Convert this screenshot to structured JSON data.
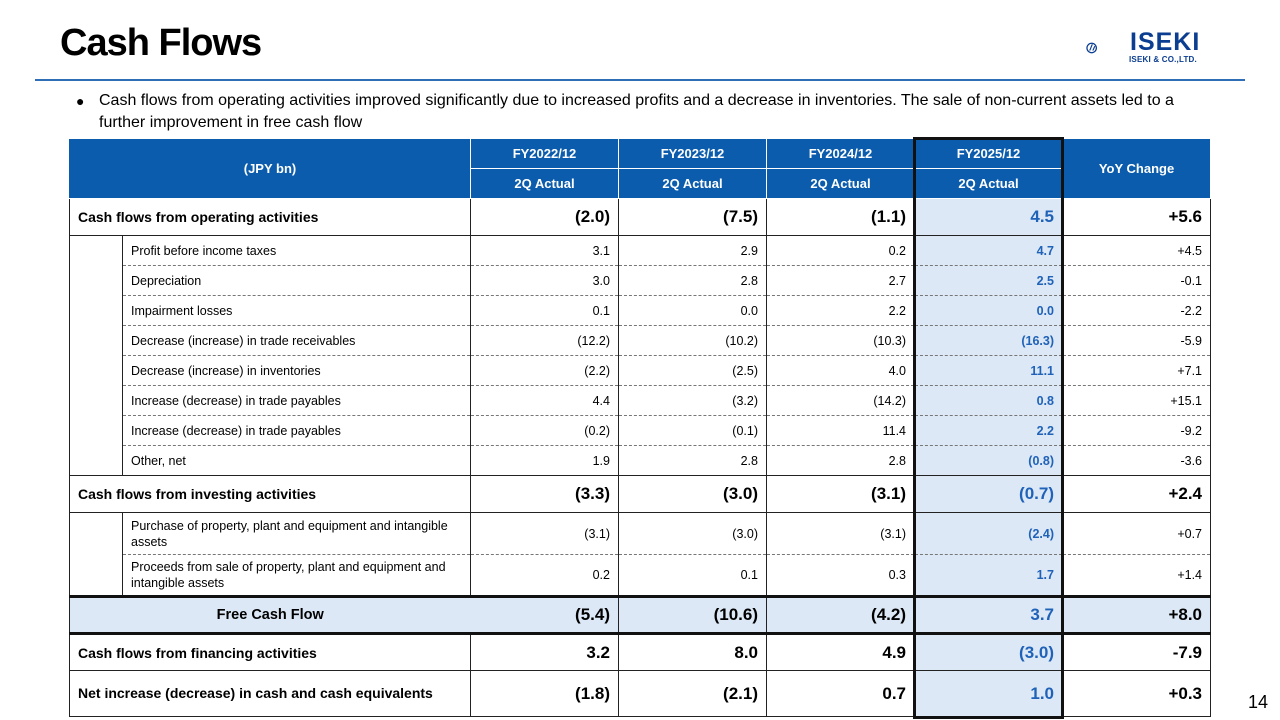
{
  "title": "Cash Flows",
  "logo": {
    "name": "ISEKI",
    "sub": "ISEKI & CO.,LTD."
  },
  "bullet": "Cash flows from operating activities improved significantly due to increased profits and a decrease in inventories. The sale of non-current assets led to a further improvement in free cash flow",
  "table": {
    "unit_header": "(JPY bn)",
    "years": [
      "FY2022/12",
      "FY2023/12",
      "FY2024/12",
      "FY2025/12"
    ],
    "period": [
      "2Q Actual",
      "2Q Actual",
      "2Q Actual",
      "2Q Actual"
    ],
    "yoy_header": "YoY Change",
    "operating": {
      "label": "Cash flows from operating activities",
      "values": [
        "(2.0)",
        "(7.5)",
        "(1.1)",
        "4.5",
        "+5.6"
      ],
      "items": [
        {
          "label": "Profit before income taxes",
          "values": [
            "3.1",
            "2.9",
            "0.2",
            "4.7",
            "+4.5"
          ]
        },
        {
          "label": "Depreciation",
          "values": [
            "3.0",
            "2.8",
            "2.7",
            "2.5",
            "-0.1"
          ]
        },
        {
          "label": "Impairment losses",
          "values": [
            "0.1",
            "0.0",
            "2.2",
            "0.0",
            "-2.2"
          ]
        },
        {
          "label": "Decrease (increase) in trade receivables",
          "values": [
            "(12.2)",
            "(10.2)",
            "(10.3)",
            "(16.3)",
            "-5.9"
          ]
        },
        {
          "label": "Decrease (increase) in inventories",
          "values": [
            "(2.2)",
            "(2.5)",
            "4.0",
            "11.1",
            "+7.1"
          ]
        },
        {
          "label": "Increase (decrease) in trade payables",
          "values": [
            "4.4",
            "(3.2)",
            "(14.2)",
            "0.8",
            "+15.1"
          ]
        },
        {
          "label": "Increase (decrease) in trade payables",
          "values": [
            "(0.2)",
            "(0.1)",
            "11.4",
            "2.2",
            "-9.2"
          ]
        },
        {
          "label": "Other, net",
          "values": [
            "1.9",
            "2.8",
            "2.8",
            "(0.8)",
            "-3.6"
          ]
        }
      ]
    },
    "investing": {
      "label": "Cash flows from investing activities",
      "values": [
        "(3.3)",
        "(3.0)",
        "(3.1)",
        "(0.7)",
        "+2.4"
      ],
      "items": [
        {
          "label": "Purchase of property, plant and equipment and intangible assets",
          "values": [
            "(3.1)",
            "(3.0)",
            "(3.1)",
            "(2.4)",
            "+0.7"
          ]
        },
        {
          "label": "Proceeds from sale of property, plant and equipment and intangible assets",
          "values": [
            "0.2",
            "0.1",
            "0.3",
            "1.7",
            "+1.4"
          ]
        }
      ]
    },
    "fcf": {
      "label": "Free Cash Flow",
      "values": [
        "(5.4)",
        "(10.6)",
        "(4.2)",
        "3.7",
        "+8.0"
      ]
    },
    "financing": {
      "label": "Cash flows from financing activities",
      "values": [
        "3.2",
        "8.0",
        "4.9",
        "(3.0)",
        "-7.9"
      ]
    },
    "net": {
      "label": "Net increase (decrease) in cash and cash equivalents",
      "values": [
        "(1.8)",
        "(2.1)",
        "0.7",
        "1.0",
        "+0.3"
      ]
    }
  },
  "page_number": "14",
  "colors": {
    "header_blue": "#0b5cad",
    "highlight_bg": "#dce8f6",
    "highlight_text": "#1f62b8",
    "rule": "#2f6db5"
  }
}
